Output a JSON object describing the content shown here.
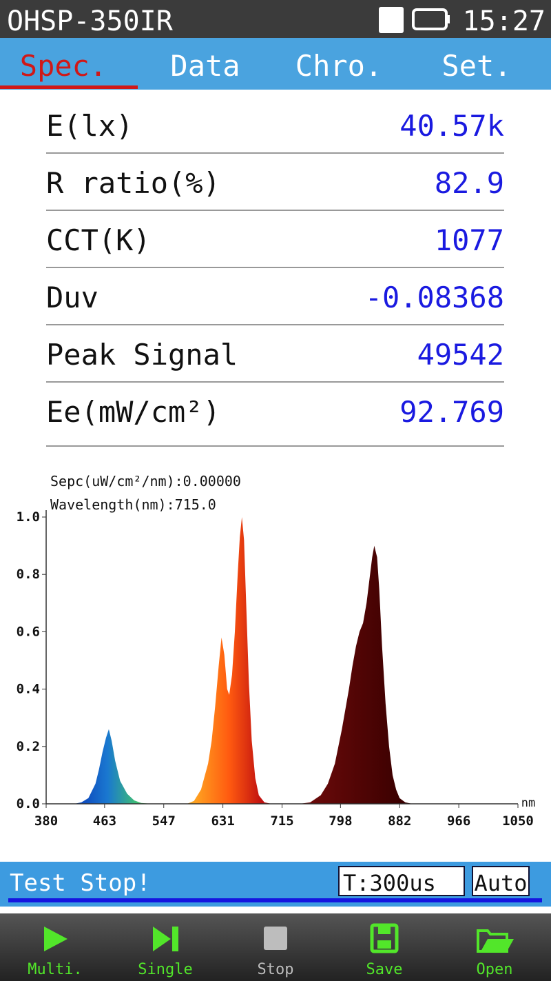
{
  "header": {
    "title": "OHSP-350IR",
    "time": "15:27"
  },
  "tabs": [
    "Spec.",
    "Data",
    "Chro.",
    "Set."
  ],
  "measurements": [
    {
      "label": "E(lx)",
      "value": "40.57k"
    },
    {
      "label": "R ratio(%)",
      "value": "82.9"
    },
    {
      "label": "CCT(K)",
      "value": "1077"
    },
    {
      "label": "Duv",
      "value": "-0.08368"
    },
    {
      "label": "Peak Signal",
      "value": "49542"
    },
    {
      "label": "Ee(mW/cm²)",
      "value": "92.769"
    }
  ],
  "chart_data": {
    "type": "area",
    "annotations": [
      "Sepc(uW/cm²/nm):0.00000",
      "Wavelength(nm):715.0"
    ],
    "x_unit": "nm",
    "x": [
      380,
      420,
      430,
      440,
      450,
      455,
      460,
      465,
      469,
      473,
      478,
      485,
      495,
      505,
      515,
      530,
      580,
      590,
      600,
      610,
      615,
      620,
      625,
      629,
      633,
      637,
      640,
      644,
      648,
      652,
      655,
      658,
      661,
      664,
      668,
      672,
      677,
      682,
      690,
      700,
      740,
      755,
      770,
      780,
      790,
      800,
      810,
      815,
      820,
      825,
      830,
      835,
      840,
      843,
      846,
      850,
      853,
      857,
      862,
      867,
      872,
      877,
      882,
      890,
      900,
      950,
      1000,
      1050
    ],
    "values": [
      0,
      0,
      0.005,
      0.02,
      0.07,
      0.12,
      0.18,
      0.23,
      0.26,
      0.22,
      0.15,
      0.08,
      0.035,
      0.012,
      0.003,
      0,
      0,
      0.01,
      0.05,
      0.14,
      0.22,
      0.34,
      0.48,
      0.58,
      0.52,
      0.4,
      0.38,
      0.45,
      0.6,
      0.8,
      0.93,
      1.0,
      0.92,
      0.7,
      0.42,
      0.22,
      0.09,
      0.03,
      0.005,
      0,
      0,
      0.005,
      0.03,
      0.07,
      0.14,
      0.26,
      0.4,
      0.48,
      0.55,
      0.6,
      0.63,
      0.7,
      0.8,
      0.86,
      0.9,
      0.86,
      0.75,
      0.55,
      0.35,
      0.2,
      0.1,
      0.05,
      0.02,
      0.005,
      0,
      0,
      0,
      0
    ],
    "xlim": [
      380,
      1050
    ],
    "xticks": [
      380,
      463,
      547,
      631,
      715,
      798,
      882,
      966,
      1050
    ],
    "ylim": [
      0,
      1
    ],
    "yticks": [
      {
        "value": 0,
        "label": "0.0"
      },
      0.2,
      0.4,
      0.6,
      0.8,
      {
        "value": 1,
        "label": "1.0"
      }
    ]
  },
  "status": {
    "message": "Test Stop!",
    "integration_time": "T:300us",
    "mode": "Auto"
  },
  "buttons": [
    "Multi.",
    "Single",
    "Stop",
    "Save",
    "Open"
  ]
}
